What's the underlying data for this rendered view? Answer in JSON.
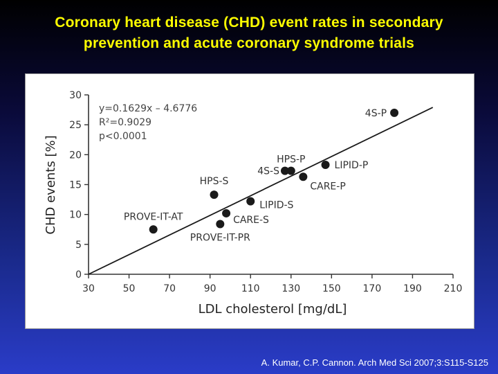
{
  "slide": {
    "title_line1": "Coronary heart disease (CHD) event rates in secondary",
    "title_line2": "prevention and acute coronary syndrome trials",
    "citation": "A. Kumar, C.P. Cannon. Arch Med Sci 2007;3:S115-S125",
    "title_color": "#ffff00"
  },
  "chart_data": {
    "type": "scatter",
    "xlabel": "LDL cholesterol [mg/dL]",
    "ylabel": "CHD events [%]",
    "xlim": [
      30,
      210
    ],
    "ylim": [
      0,
      30
    ],
    "xticks": [
      30,
      50,
      70,
      90,
      110,
      130,
      150,
      170,
      190,
      210
    ],
    "yticks": [
      0,
      5,
      10,
      15,
      20,
      25,
      30
    ],
    "grid": false,
    "points": [
      {
        "label": "4S-P",
        "x": 181,
        "y": 27.0
      },
      {
        "label": "LIPID-P",
        "x": 147,
        "y": 18.3
      },
      {
        "label": "HPS-P",
        "x": 130,
        "y": 17.3
      },
      {
        "label": "4S-S",
        "x": 127,
        "y": 17.3
      },
      {
        "label": "CARE-P",
        "x": 136,
        "y": 16.3
      },
      {
        "label": "HPS-S",
        "x": 92,
        "y": 13.3
      },
      {
        "label": "LIPID-S",
        "x": 110,
        "y": 12.2
      },
      {
        "label": "CARE-S",
        "x": 98,
        "y": 10.2
      },
      {
        "label": "PROVE-IT-PR",
        "x": 95,
        "y": 8.4
      },
      {
        "label": "PROVE-IT-AT",
        "x": 62,
        "y": 7.5
      }
    ],
    "trendline": {
      "x_range": [
        30,
        200
      ],
      "equation": "y=0.1629x – 4.6776",
      "r2": "R²=0.9029",
      "p": "p<0.0001"
    },
    "marker_color": "#1a1a1a",
    "line_color": "#1a1a1a",
    "axis_color": "#333333"
  }
}
